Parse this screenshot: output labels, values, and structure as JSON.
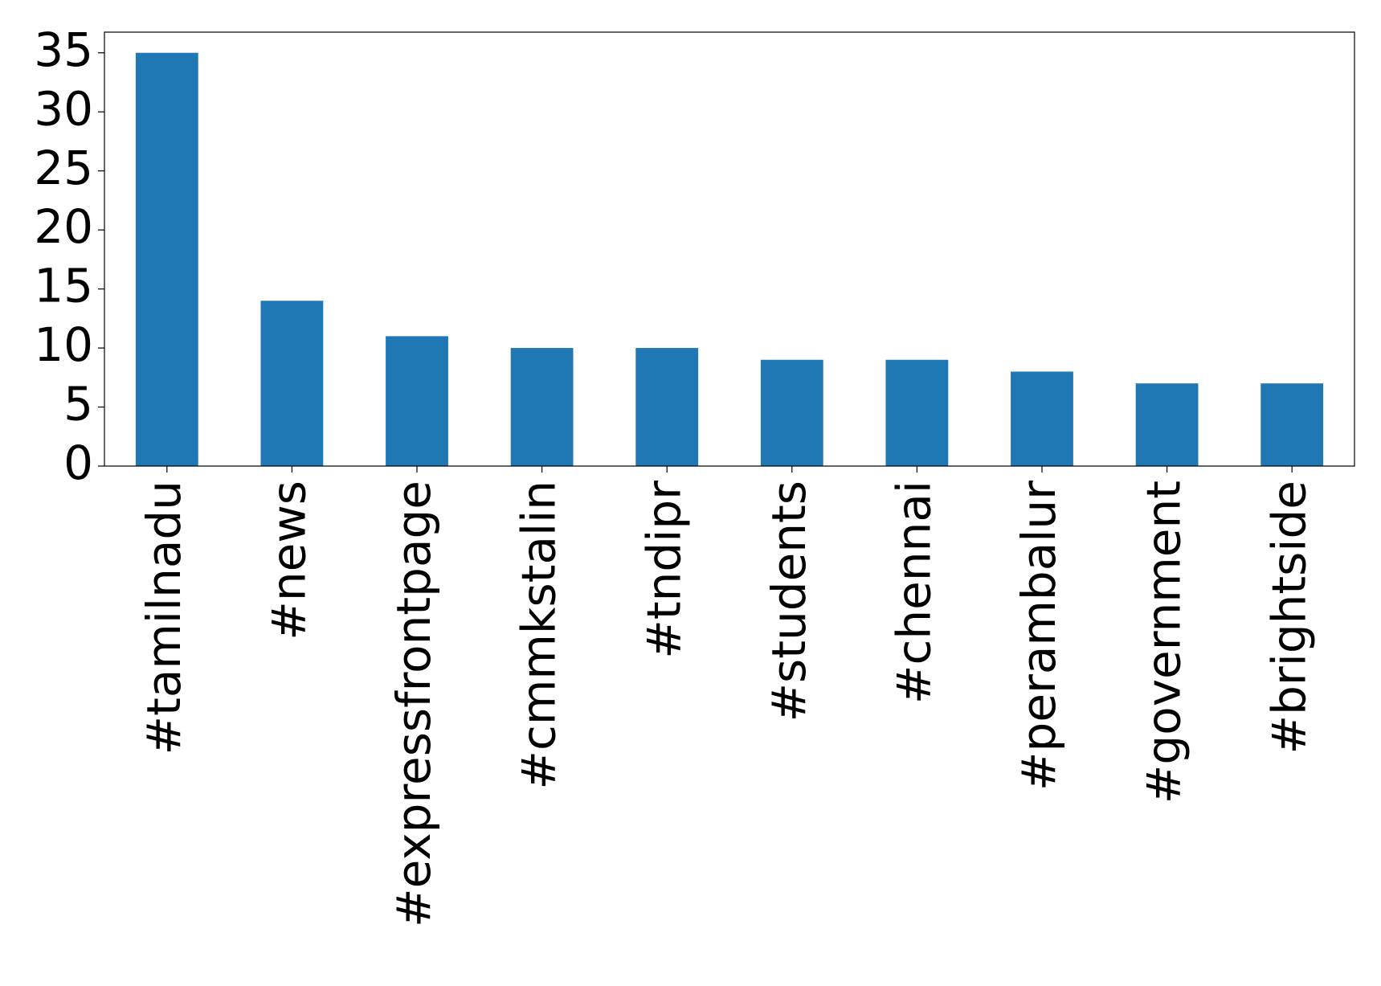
{
  "chart_data": {
    "type": "bar",
    "categories": [
      "#tamilnadu",
      "#news",
      "#expressfrontpage",
      "#cmmkstalin",
      "#tndipr",
      "#students",
      "#chennai",
      "#perambalur",
      "#government",
      "#brightside"
    ],
    "values": [
      35,
      14,
      11,
      10,
      10,
      9,
      9,
      8,
      7,
      7
    ],
    "color": "#1f77b4",
    "ylim": [
      0,
      36.75
    ],
    "yticks": [
      0,
      5,
      10,
      15,
      20,
      25,
      30,
      35
    ],
    "grid": false
  }
}
